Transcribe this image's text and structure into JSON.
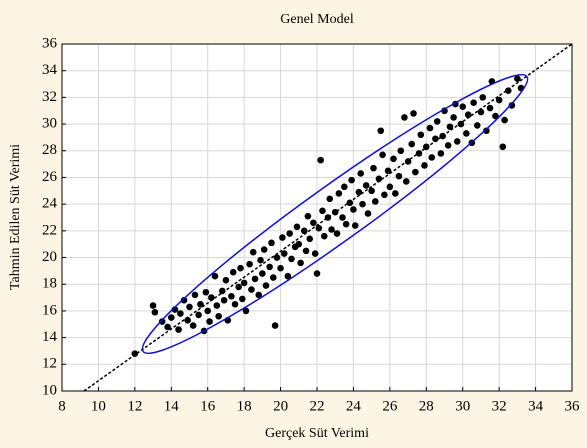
{
  "chart_data": {
    "type": "scatter",
    "title": "Genel Model",
    "xlabel": "Gerçek Süt Verimi",
    "ylabel": "Tahmin Edilen Süt Verimi",
    "color": "#000000",
    "grid": true,
    "xlim": [
      8,
      36
    ],
    "ylim": [
      10,
      36
    ],
    "xticks": [
      8,
      10,
      12,
      14,
      16,
      18,
      20,
      22,
      24,
      26,
      28,
      30,
      32,
      34,
      36
    ],
    "yticks": [
      10,
      12,
      14,
      16,
      18,
      20,
      22,
      24,
      26,
      28,
      30,
      32,
      34,
      36
    ],
    "x": [
      12.0,
      13.0,
      13.1,
      13.5,
      13.8,
      14.0,
      14.2,
      14.4,
      14.5,
      14.7,
      14.9,
      15.0,
      15.2,
      15.3,
      15.5,
      15.6,
      15.8,
      15.9,
      16.0,
      16.1,
      16.2,
      16.4,
      16.5,
      16.6,
      16.8,
      16.9,
      17.0,
      17.1,
      17.3,
      17.4,
      17.5,
      17.7,
      17.8,
      17.9,
      18.0,
      18.1,
      18.3,
      18.4,
      18.5,
      18.6,
      18.8,
      18.9,
      19.0,
      19.1,
      19.2,
      19.4,
      19.5,
      19.6,
      19.7,
      19.8,
      20.0,
      20.1,
      20.2,
      20.4,
      20.5,
      20.6,
      20.8,
      20.9,
      21.0,
      21.1,
      21.3,
      21.4,
      21.5,
      21.6,
      21.8,
      21.9,
      22.0,
      22.1,
      22.2,
      22.3,
      22.4,
      22.6,
      22.7,
      22.8,
      23.0,
      23.1,
      23.2,
      23.4,
      23.5,
      23.6,
      23.8,
      23.9,
      24.0,
      24.1,
      24.3,
      24.4,
      24.5,
      24.7,
      24.8,
      25.0,
      25.1,
      25.2,
      25.4,
      25.5,
      25.6,
      25.7,
      25.9,
      26.0,
      26.2,
      26.3,
      26.5,
      26.6,
      26.8,
      26.9,
      27.0,
      27.2,
      27.3,
      27.4,
      27.6,
      27.7,
      27.9,
      28.0,
      28.2,
      28.3,
      28.5,
      28.6,
      28.8,
      28.9,
      29.0,
      29.2,
      29.3,
      29.5,
      29.6,
      29.7,
      29.9,
      30.0,
      30.2,
      30.3,
      30.5,
      30.6,
      30.8,
      31.0,
      31.1,
      31.3,
      31.5,
      31.6,
      31.8,
      32.0,
      32.2,
      32.3,
      32.5,
      32.7,
      33.0,
      33.2
    ],
    "values": [
      12.8,
      16.4,
      15.9,
      15.2,
      14.8,
      15.5,
      16.1,
      14.6,
      15.8,
      16.8,
      15.3,
      16.3,
      14.9,
      17.2,
      15.7,
      16.5,
      14.5,
      17.4,
      16.0,
      15.2,
      17.0,
      18.6,
      16.4,
      15.6,
      17.5,
      16.8,
      18.3,
      15.3,
      17.1,
      18.9,
      16.5,
      17.8,
      19.2,
      16.9,
      18.1,
      16.0,
      19.5,
      17.6,
      20.4,
      18.4,
      17.2,
      19.8,
      18.8,
      20.6,
      17.9,
      19.3,
      21.1,
      18.5,
      14.9,
      20.0,
      19.2,
      21.5,
      20.3,
      18.6,
      21.8,
      19.9,
      20.8,
      22.3,
      21.0,
      19.6,
      22.0,
      20.5,
      23.1,
      21.4,
      22.6,
      20.3,
      18.8,
      22.2,
      27.3,
      23.5,
      21.6,
      23.0,
      24.4,
      22.1,
      23.4,
      21.8,
      24.8,
      23.0,
      25.3,
      22.5,
      24.1,
      25.8,
      23.6,
      22.4,
      24.9,
      26.3,
      24.0,
      25.4,
      23.3,
      25.0,
      26.7,
      24.2,
      25.9,
      29.5,
      27.7,
      24.7,
      26.5,
      25.3,
      27.4,
      24.8,
      26.1,
      28.0,
      30.5,
      25.7,
      27.2,
      28.5,
      30.8,
      26.4,
      27.8,
      29.2,
      26.9,
      28.3,
      29.7,
      27.5,
      28.9,
      30.2,
      27.8,
      29.1,
      31.0,
      28.4,
      29.8,
      30.5,
      31.5,
      28.7,
      30.0,
      31.3,
      29.3,
      30.7,
      28.6,
      31.6,
      29.9,
      30.9,
      32.0,
      29.5,
      31.2,
      33.2,
      30.6,
      31.8,
      28.3,
      30.3,
      32.5,
      31.4,
      33.4,
      32.7
    ]
  }
}
